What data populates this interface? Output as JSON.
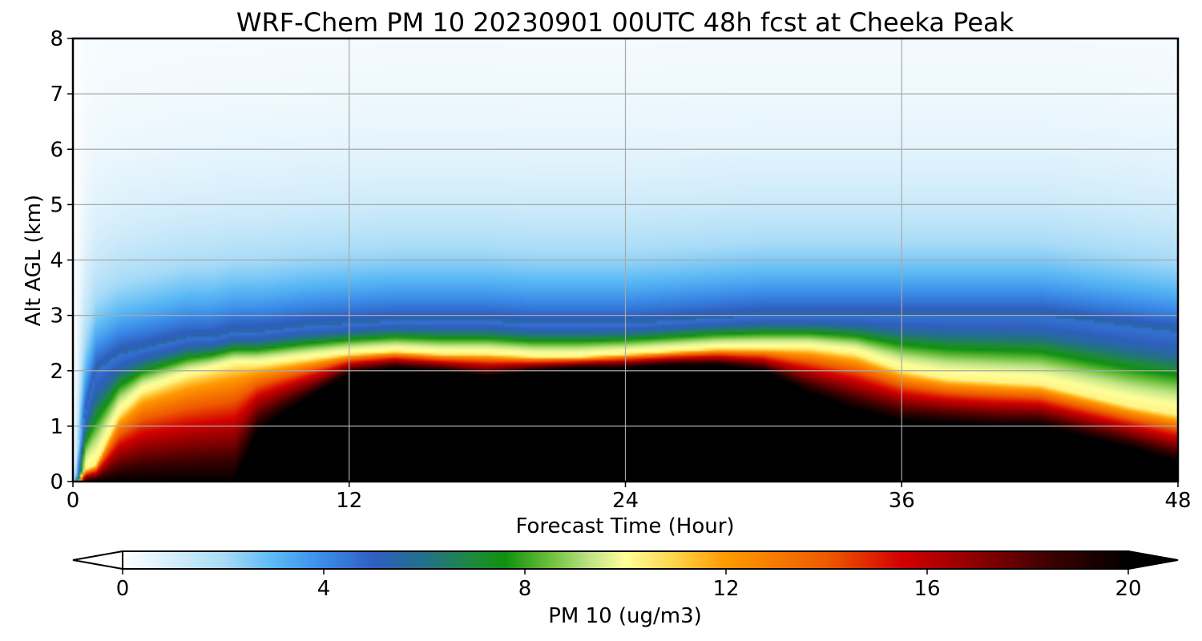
{
  "chart_data": {
    "type": "heatmap",
    "title": "WRF-Chem PM 10  20230901 00UTC 48h fcst at Cheeka Peak",
    "xlabel": "Forecast Time (Hour)",
    "ylabel": "Alt AGL (km)",
    "xlim": [
      0,
      48
    ],
    "ylim": [
      0,
      8
    ],
    "xticks": [
      0,
      12,
      24,
      36,
      48
    ],
    "yticks": [
      0,
      1,
      2,
      3,
      4,
      5,
      6,
      7,
      8
    ],
    "grid": true,
    "z_unit": "ug/m3",
    "colorbar": {
      "label": "PM 10  (ug/m3)",
      "orientation": "horizontal",
      "placement": "bottom",
      "min": 0,
      "max": 20,
      "ticks": [
        0,
        4,
        8,
        12,
        16,
        20
      ],
      "extend": "both",
      "stops": [
        {
          "v": 0,
          "color": "#ffffff"
        },
        {
          "v": 2,
          "color": "#a9dcf7"
        },
        {
          "v": 3,
          "color": "#5ab9f5"
        },
        {
          "v": 4,
          "color": "#3a8be8"
        },
        {
          "v": 5,
          "color": "#2f5fbf"
        },
        {
          "v": 6,
          "color": "#23708a"
        },
        {
          "v": 7,
          "color": "#1e8a3a"
        },
        {
          "v": 7.6,
          "color": "#109010"
        },
        {
          "v": 8.5,
          "color": "#6cbf3c"
        },
        {
          "v": 9.3,
          "color": "#c0e486"
        },
        {
          "v": 10,
          "color": "#ffff99"
        },
        {
          "v": 11,
          "color": "#ffd24a"
        },
        {
          "v": 12,
          "color": "#ff9a00"
        },
        {
          "v": 14,
          "color": "#ee5a00"
        },
        {
          "v": 15.5,
          "color": "#d40000"
        },
        {
          "v": 17,
          "color": "#8a0000"
        },
        {
          "v": 18.5,
          "color": "#3a0000"
        },
        {
          "v": 20,
          "color": "#000000"
        }
      ]
    },
    "field": {
      "description_keys": [
        "x",
        "top",
        "inner",
        "mid"
      ],
      "x": [
        0,
        0.5,
        1,
        2,
        3,
        4,
        5,
        6,
        7,
        8,
        9,
        10,
        12,
        14,
        16,
        18,
        20,
        22,
        24,
        26,
        28,
        30,
        32,
        34,
        36,
        38,
        40,
        42,
        44,
        46,
        48
      ],
      "top": [
        0.3,
        1.2,
        2.0,
        2.3,
        2.4,
        2.5,
        2.6,
        2.6,
        2.7,
        2.7,
        2.75,
        2.8,
        2.85,
        2.9,
        2.9,
        2.9,
        2.85,
        2.85,
        2.85,
        2.9,
        2.95,
        3.0,
        3.0,
        3.0,
        3.0,
        3.0,
        3.0,
        3.0,
        2.9,
        2.8,
        2.7
      ],
      "inner": [
        0,
        0,
        0,
        0,
        0,
        0,
        0,
        0,
        0,
        0.9,
        1.2,
        1.45,
        1.95,
        2.05,
        2.0,
        1.9,
        2.0,
        2.05,
        2.05,
        2.1,
        2.1,
        2.0,
        1.6,
        1.3,
        1.1,
        1.05,
        1.0,
        1.0,
        0.8,
        0.6,
        0.35
      ],
      "mid": [
        0.1,
        0.2,
        0.3,
        1.2,
        1.6,
        1.75,
        1.9,
        2.0,
        2.1,
        2.1,
        2.15,
        2.2,
        2.3,
        2.35,
        2.3,
        2.3,
        2.25,
        2.25,
        2.3,
        2.35,
        2.4,
        2.4,
        2.4,
        2.3,
        2.0,
        1.85,
        1.8,
        1.75,
        1.55,
        1.35,
        1.2
      ]
    }
  }
}
